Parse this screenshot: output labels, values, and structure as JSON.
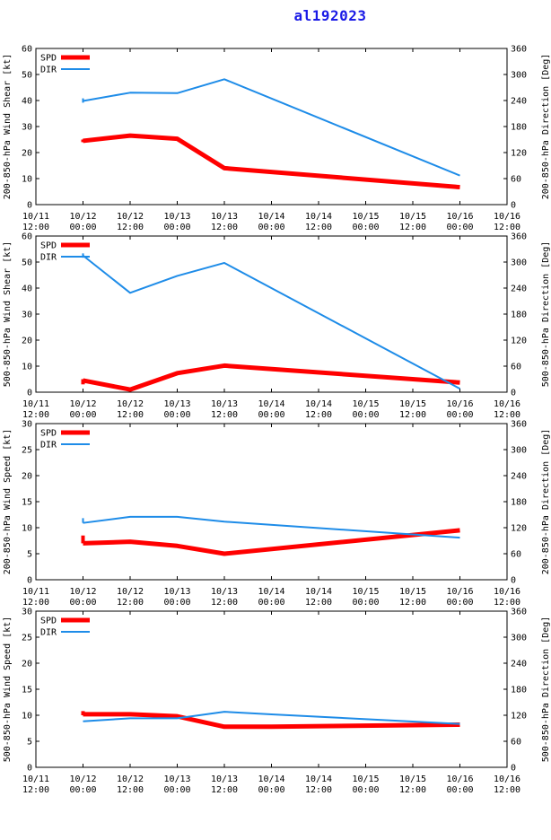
{
  "title": "al192023",
  "colors": {
    "spd": "#ff0000",
    "dir": "#1e8ce8",
    "title": "#1a1ae6"
  },
  "legend": {
    "spd": "SPD",
    "dir": "DIR"
  },
  "x_ticks": [
    {
      "d": "10/11",
      "t": "12:00"
    },
    {
      "d": "10/12",
      "t": "00:00"
    },
    {
      "d": "10/12",
      "t": "12:00"
    },
    {
      "d": "10/13",
      "t": "00:00"
    },
    {
      "d": "10/13",
      "t": "12:00"
    },
    {
      "d": "10/14",
      "t": "00:00"
    },
    {
      "d": "10/14",
      "t": "12:00"
    },
    {
      "d": "10/15",
      "t": "00:00"
    },
    {
      "d": "10/15",
      "t": "12:00"
    },
    {
      "d": "10/16",
      "t": "00:00"
    },
    {
      "d": "10/16",
      "t": "12:00"
    }
  ],
  "chart_data": [
    {
      "type": "line",
      "ylabel_left": "200-850-hPa Wind Shear [kt]",
      "ylabel_right": "200-850-hPa Direction [Deg]",
      "ylim_left": [
        0,
        60
      ],
      "yticks_left": [
        0,
        10,
        20,
        30,
        40,
        50,
        60
      ],
      "ylim_right": [
        0,
        360
      ],
      "yticks_right": [
        0,
        60,
        120,
        180,
        240,
        300,
        360
      ],
      "x": [
        1,
        2,
        3,
        4,
        9
      ],
      "series": [
        {
          "name": "SPD",
          "axis": "left",
          "values": [
            24.5,
            26.5,
            25.3,
            14.0,
            6.7
          ],
          "start_jump": [
            24.0,
            25.0
          ]
        },
        {
          "name": "DIR",
          "axis": "right",
          "values": [
            239,
            258,
            257,
            289,
            67
          ],
          "start_jump": [
            235,
            245
          ]
        }
      ]
    },
    {
      "type": "line",
      "ylabel_left": "500-850-hPa Wind Shear [kt]",
      "ylabel_right": "500-850-hPa Direction [Deg]",
      "ylim_left": [
        0,
        60
      ],
      "yticks_left": [
        0,
        10,
        20,
        30,
        40,
        50,
        60
      ],
      "ylim_right": [
        0,
        360
      ],
      "yticks_right": [
        0,
        60,
        120,
        180,
        240,
        300,
        360
      ],
      "x": [
        1,
        2,
        3,
        4,
        9
      ],
      "series": [
        {
          "name": "SPD",
          "axis": "left",
          "values": [
            4.5,
            1.0,
            7.3,
            10.2,
            3.7
          ],
          "start_jump": [
            3.0,
            5.0
          ]
        },
        {
          "name": "DIR",
          "axis": "right",
          "values": [
            315,
            229,
            268,
            298,
            8
          ],
          "start_jump": [
            310,
            320
          ]
        }
      ]
    },
    {
      "type": "line",
      "ylabel_left": "200-850-hPa Wind Speed [kt]",
      "ylabel_right": "200-850-hPa Direction [Deg]",
      "ylim_left": [
        0,
        30
      ],
      "yticks_left": [
        0,
        5,
        10,
        15,
        20,
        25,
        30
      ],
      "ylim_right": [
        0,
        360
      ],
      "yticks_right": [
        0,
        60,
        120,
        180,
        240,
        300,
        360
      ],
      "x": [
        1,
        2,
        3,
        4,
        9
      ],
      "series": [
        {
          "name": "SPD",
          "axis": "left",
          "values": [
            7.0,
            7.3,
            6.5,
            5.0,
            9.5
          ],
          "start_jump": [
            7.0,
            8.5
          ]
        },
        {
          "name": "DIR",
          "axis": "right",
          "values": [
            131,
            145,
            145,
            134,
            97
          ],
          "start_jump": [
            131,
            142
          ]
        }
      ]
    },
    {
      "type": "line",
      "ylabel_left": "500-850-hPa Wind Speed [kt]",
      "ylabel_right": "500-850-hPa Direction [Deg]",
      "ylim_left": [
        0,
        30
      ],
      "yticks_left": [
        0,
        5,
        10,
        15,
        20,
        25,
        30
      ],
      "ylim_right": [
        0,
        360
      ],
      "yticks_right": [
        0,
        60,
        120,
        180,
        240,
        300,
        360
      ],
      "x": [
        1,
        2,
        3,
        4,
        5,
        9
      ],
      "series": [
        {
          "name": "SPD",
          "axis": "left",
          "values": [
            10.2,
            10.2,
            9.8,
            7.8,
            7.8,
            8.2
          ],
          "start_jump": [
            10.0,
            10.8
          ]
        },
        {
          "name": "DIR",
          "axis": "right",
          "values": [
            106,
            113,
            113,
            128,
            122,
            100
          ]
        }
      ]
    }
  ]
}
